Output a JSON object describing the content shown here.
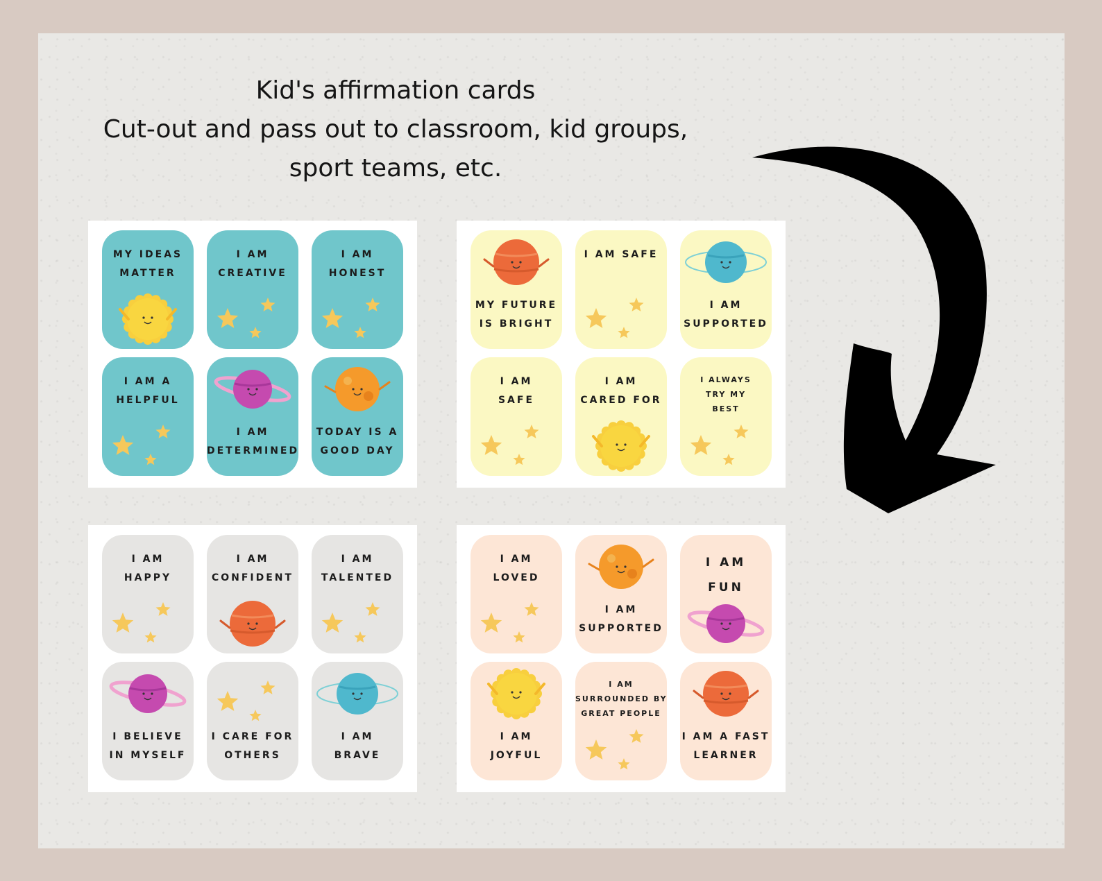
{
  "title": {
    "line1": "Kid's affirmation cards",
    "line2": "Cut-out and pass out to classroom, kid groups,",
    "line3": "sport teams, etc."
  },
  "colors": {
    "teal": "#70c6cb",
    "yellow": "#fbf8c3",
    "gray": "#e6e5e3",
    "peach": "#fde6d6",
    "star": "#f6c85b"
  },
  "sheets": [
    {
      "theme": "teal",
      "cards": [
        {
          "lines": [
            "MY IDEAS",
            "MATTER"
          ],
          "icon": "sun-icon"
        },
        {
          "lines": [
            "I AM",
            "CREATIVE"
          ],
          "icon": "stars-icon"
        },
        {
          "lines": [
            "I AM",
            "HONEST"
          ],
          "icon": "stars-icon"
        },
        {
          "lines": [
            "I AM A",
            "HELPFUL"
          ],
          "icon": "stars-icon"
        },
        {
          "lines": [
            "I AM",
            "DETERMINED"
          ],
          "icon": "ringed-planet-icon"
        },
        {
          "lines": [
            "TODAY IS A",
            "GOOD DAY"
          ],
          "icon": "orange-planet-icon"
        }
      ]
    },
    {
      "theme": "yellow",
      "cards": [
        {
          "lines": [
            "MY FUTURE",
            "IS BRIGHT"
          ],
          "icon": "red-planet-icon"
        },
        {
          "lines": [
            "I AM SAFE"
          ],
          "icon": "stars-icon"
        },
        {
          "lines": [
            "I AM",
            "SUPPORTED"
          ],
          "icon": "blue-planet-icon"
        },
        {
          "lines": [
            "I AM",
            "SAFE"
          ],
          "icon": "stars-icon"
        },
        {
          "lines": [
            "I AM",
            "CARED FOR"
          ],
          "icon": "sun-icon"
        },
        {
          "lines": [
            "I ALWAYS",
            "TRY MY",
            "BEST"
          ],
          "icon": "stars-icon"
        }
      ]
    },
    {
      "theme": "gray",
      "cards": [
        {
          "lines": [
            "I AM",
            "HAPPY"
          ],
          "icon": "stars-icon"
        },
        {
          "lines": [
            "I AM",
            "CONFIDENT"
          ],
          "icon": "red-planet-icon"
        },
        {
          "lines": [
            "I AM",
            "TALENTED"
          ],
          "icon": "stars-icon"
        },
        {
          "lines": [
            "I BELIEVE",
            "IN MYSELF"
          ],
          "icon": "ringed-planet-icon"
        },
        {
          "lines": [
            "I CARE FOR",
            "OTHERS"
          ],
          "icon": "stars-icon"
        },
        {
          "lines": [
            "I AM",
            "BRAVE"
          ],
          "icon": "blue-planet-icon"
        }
      ]
    },
    {
      "theme": "peach",
      "cards": [
        {
          "lines": [
            "I AM",
            "LOVED"
          ],
          "icon": "stars-icon"
        },
        {
          "lines": [
            "I AM",
            "SUPPORTED"
          ],
          "icon": "orange-planet-icon"
        },
        {
          "lines": [
            "I AM",
            "FUN"
          ],
          "icon": "ringed-planet-icon"
        },
        {
          "lines": [
            "I AM",
            "JOYFUL"
          ],
          "icon": "sun-icon"
        },
        {
          "lines": [
            "I AM",
            "SURROUNDED BY",
            "GREAT PEOPLE"
          ],
          "icon": "stars-icon"
        },
        {
          "lines": [
            "I AM A FAST",
            "LEARNER"
          ],
          "icon": "red-planet-icon"
        }
      ]
    }
  ]
}
